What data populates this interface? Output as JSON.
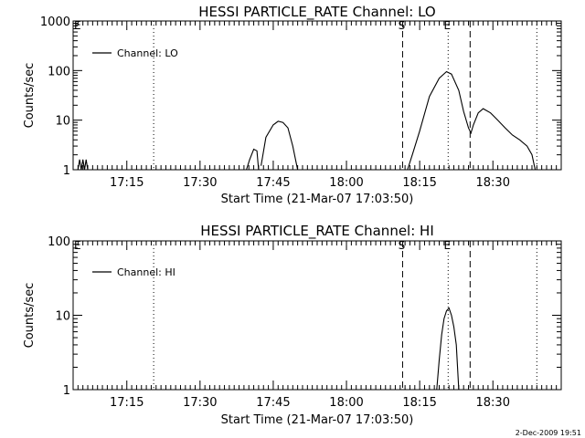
{
  "chart_data": [
    {
      "type": "line",
      "title": "HESSI PARTICLE_RATE Channel: LO",
      "xlabel": "Start Time (21-Mar-07 17:03:50)",
      "ylabel": "Counts/sec",
      "yscale": "log",
      "ylim": [
        1,
        1000
      ],
      "xlim": [
        "17:04",
        "18:44"
      ],
      "x_ticks": [
        "17:15",
        "17:30",
        "17:45",
        "18:00",
        "18:15",
        "18:30"
      ],
      "y_ticks": [
        "1",
        "10",
        "100",
        "1000"
      ],
      "legend": {
        "position": "top-left",
        "entries": [
          "Channel: LO"
        ]
      },
      "series": [
        {
          "name": "Channel: LO",
          "segments": [
            [
              [
                "17:05:00",
                1.0
              ],
              [
                "17:05:20",
                1.6
              ],
              [
                "17:05:40",
                1.0
              ],
              [
                "17:06:00",
                1.6
              ],
              [
                "17:06:20",
                1.0
              ],
              [
                "17:06:40",
                1.6
              ],
              [
                "17:07:00",
                1.0
              ]
            ],
            [
              [
                "17:39:30",
                1.0
              ],
              [
                "17:40:10",
                1.6
              ],
              [
                "17:41:00",
                2.6
              ],
              [
                "17:41:40",
                2.4
              ],
              [
                "17:42:00",
                1.0
              ]
            ],
            [
              [
                "17:42:30",
                1.2
              ],
              [
                "17:43:30",
                4.5
              ],
              [
                "17:45:00",
                8.0
              ],
              [
                "17:46:00",
                9.5
              ],
              [
                "17:47:00",
                9.0
              ],
              [
                "17:48:00",
                7.0
              ],
              [
                "17:49:00",
                3.0
              ],
              [
                "17:50:00",
                1.0
              ]
            ],
            [
              [
                "18:12:30",
                1.0
              ],
              [
                "18:13:30",
                2.0
              ],
              [
                "18:15:00",
                6.0
              ],
              [
                "18:17:00",
                30.0
              ],
              [
                "18:19:00",
                70.0
              ],
              [
                "18:20:30",
                95.0
              ],
              [
                "18:21:30",
                85.0
              ],
              [
                "18:23:00",
                40.0
              ],
              [
                "18:24:00",
                15.0
              ],
              [
                "18:25:00",
                7.0
              ],
              [
                "18:25:30",
                5.5
              ],
              [
                "18:26:00",
                8.0
              ],
              [
                "18:27:00",
                14.0
              ],
              [
                "18:28:00",
                17.0
              ],
              [
                "18:29:30",
                14.0
              ],
              [
                "18:31:00",
                10.0
              ],
              [
                "18:32:30",
                7.0
              ],
              [
                "18:34:00",
                5.0
              ],
              [
                "18:35:30",
                4.0
              ],
              [
                "18:37:00",
                3.0
              ],
              [
                "18:38:00",
                2.0
              ],
              [
                "18:38:40",
                1.0
              ]
            ]
          ]
        }
      ],
      "markers": [
        {
          "time": "18:11:30",
          "style": "dashed",
          "label": "S"
        },
        {
          "time": "18:25:20",
          "style": "dashed",
          "label": ""
        },
        {
          "time": "18:20:50",
          "style": "dotted",
          "label": "E"
        },
        {
          "time": "17:20:30",
          "style": "dotted",
          "label": ""
        },
        {
          "time": "18:39:00",
          "style": "dotted",
          "label": ""
        }
      ],
      "corner_label": "E"
    },
    {
      "type": "line",
      "title": "HESSI PARTICLE_RATE Channel: HI",
      "xlabel": "Start Time (21-Mar-07 17:03:50)",
      "ylabel": "Counts/sec",
      "yscale": "log",
      "ylim": [
        1,
        100
      ],
      "xlim": [
        "17:04",
        "18:44"
      ],
      "x_ticks": [
        "17:15",
        "17:30",
        "17:45",
        "18:00",
        "18:15",
        "18:30"
      ],
      "y_ticks": [
        "1",
        "10",
        "100"
      ],
      "legend": {
        "position": "top-left",
        "entries": [
          "Channel: HI"
        ]
      },
      "series": [
        {
          "name": "Channel: HI",
          "segments": [
            [
              [
                "18:18:30",
                1.0
              ],
              [
                "18:19:00",
                2.5
              ],
              [
                "18:19:30",
                5.5
              ],
              [
                "18:20:00",
                9.0
              ],
              [
                "18:20:30",
                11.5
              ],
              [
                "18:21:00",
                12.5
              ],
              [
                "18:21:30",
                10.0
              ],
              [
                "18:22:00",
                7.0
              ],
              [
                "18:22:30",
                4.0
              ],
              [
                "18:23:00",
                1.0
              ]
            ]
          ]
        }
      ],
      "markers": [
        {
          "time": "18:11:30",
          "style": "dashed",
          "label": "S"
        },
        {
          "time": "18:25:20",
          "style": "dashed",
          "label": ""
        },
        {
          "time": "18:20:50",
          "style": "dotted",
          "label": "E"
        },
        {
          "time": "17:20:30",
          "style": "dotted",
          "label": ""
        },
        {
          "time": "18:39:00",
          "style": "dotted",
          "label": ""
        }
      ],
      "corner_label": "E"
    }
  ],
  "footer": {
    "stamp": "2-Dec-2009 19:51"
  }
}
